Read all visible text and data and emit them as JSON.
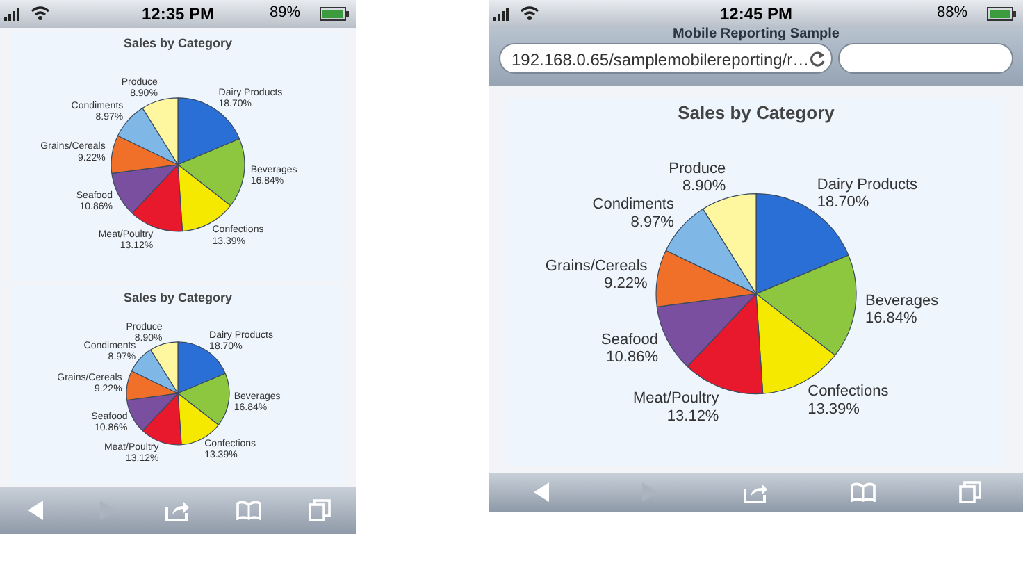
{
  "chart_data": [
    {
      "type": "pie",
      "title": "Sales by Category",
      "categories": [
        "Dairy Products",
        "Beverages",
        "Confections",
        "Meat/Poultry",
        "Seafood",
        "Grains/Cereals",
        "Condiments",
        "Produce"
      ],
      "values": [
        18.7,
        16.84,
        13.39,
        13.12,
        10.86,
        9.22,
        8.97,
        8.9
      ],
      "value_labels": [
        "18.70%",
        "16.84%",
        "13.39%",
        "13.12%",
        "10.86%",
        "9.22%",
        "8.97%",
        "8.90%"
      ],
      "colors": [
        "#2a6fd6",
        "#8dc63f",
        "#f5e900",
        "#e8192c",
        "#7b4fa0",
        "#f0702a",
        "#7fb8e6",
        "#fff7a0"
      ],
      "annotations": [
        "12:35 PM",
        "89%"
      ]
    },
    {
      "type": "pie",
      "title": "Sales by Category",
      "categories": [
        "Dairy Products",
        "Beverages",
        "Confections",
        "Meat/Poultry",
        "Seafood",
        "Grains/Cereals",
        "Condiments",
        "Produce"
      ],
      "values": [
        18.7,
        16.84,
        13.39,
        13.12,
        10.86,
        9.22,
        8.97,
        8.9
      ],
      "value_labels": [
        "18.70%",
        "16.84%",
        "13.39%",
        "13.12%",
        "10.86%",
        "9.22%",
        "8.97%",
        "8.90%"
      ],
      "colors": [
        "#2a6fd6",
        "#8dc63f",
        "#f5e900",
        "#e8192c",
        "#7b4fa0",
        "#f0702a",
        "#7fb8e6",
        "#fff7a0"
      ]
    },
    {
      "type": "pie",
      "title": "Sales by Category",
      "categories": [
        "Dairy Products",
        "Beverages",
        "Confections",
        "Meat/Poultry",
        "Seafood",
        "Grains/Cereals",
        "Condiments",
        "Produce"
      ],
      "values": [
        18.7,
        16.84,
        13.39,
        13.12,
        10.86,
        9.22,
        8.97,
        8.9
      ],
      "value_labels": [
        "18.70%",
        "16.84%",
        "13.39%",
        "13.12%",
        "10.86%",
        "9.22%",
        "8.97%",
        "8.90%"
      ],
      "colors": [
        "#2a6fd6",
        "#8dc63f",
        "#f5e900",
        "#e8192c",
        "#7b4fa0",
        "#f0702a",
        "#7fb8e6",
        "#fff7a0"
      ],
      "annotations": [
        "12:45 PM",
        "88%",
        "Mobile Reporting Sample",
        "192.168.0.65/samplemobilereporting/r…"
      ]
    }
  ]
}
